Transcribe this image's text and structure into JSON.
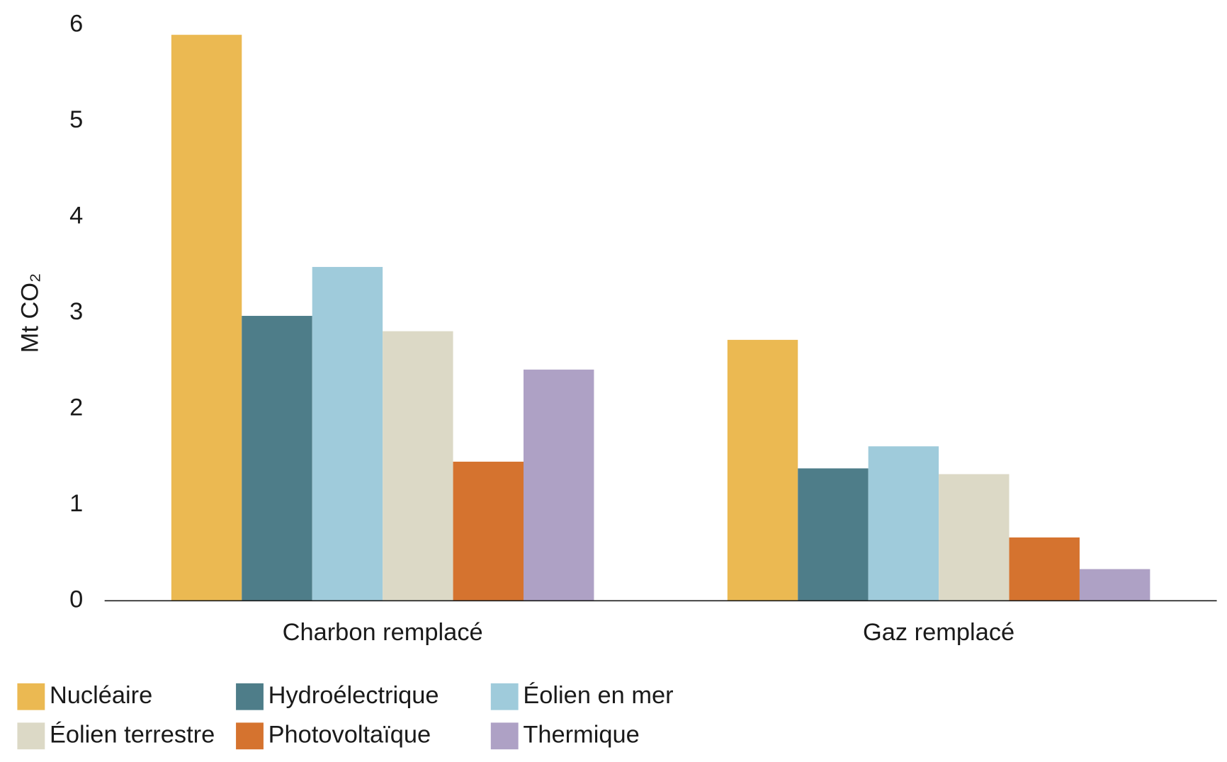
{
  "chart_data": {
    "type": "bar",
    "y_label": "Mt CO₂",
    "categories": [
      "Charbon remplacé",
      "Gaz remplacé"
    ],
    "series": [
      {
        "name": "Nucléaire",
        "color": "#ebb952",
        "values": [
          5.9,
          2.72
        ]
      },
      {
        "name": "Hydroélectrique",
        "color": "#4e7d89",
        "values": [
          2.97,
          1.38
        ]
      },
      {
        "name": "Éolien en mer",
        "color": "#9fcbdb",
        "values": [
          3.48,
          1.61
        ]
      },
      {
        "name": "Éolien terrestre",
        "color": "#dcd9c6",
        "values": [
          2.81,
          1.32
        ]
      },
      {
        "name": "Photovoltaïque",
        "color": "#d5732f",
        "values": [
          1.45,
          0.66
        ]
      },
      {
        "name": "Thermique",
        "color": "#aea1c5",
        "values": [
          2.41,
          0.33
        ]
      }
    ],
    "ylim": [
      0,
      6
    ],
    "yticks": [
      0,
      1,
      2,
      3,
      4,
      5,
      6
    ],
    "grid": false,
    "legend": "bottom-left"
  }
}
